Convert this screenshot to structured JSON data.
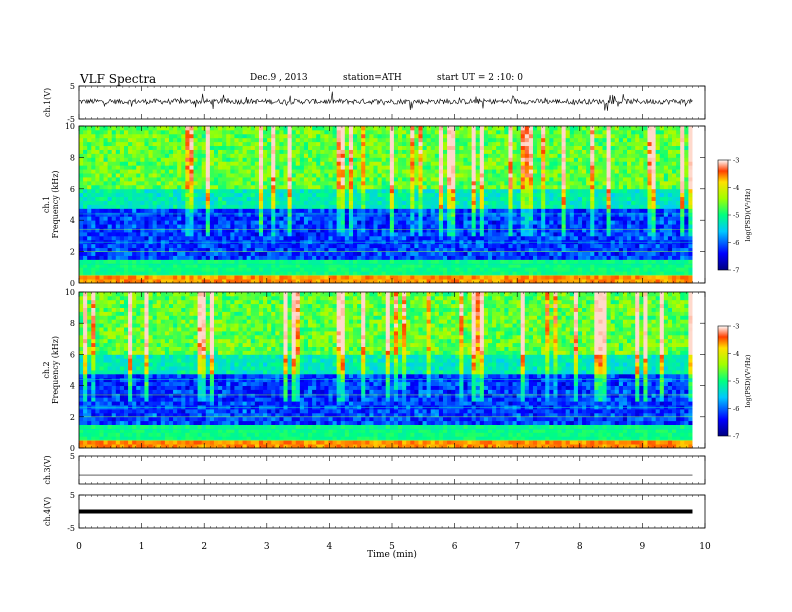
{
  "header": {
    "title": "VLF  Spectra",
    "date": "Dec.9  , 2013",
    "station": "station=ATH",
    "start": "start  UT  =   2 :10: 0"
  },
  "chart_data": [
    {
      "type": "line",
      "panel": "ch1-waveform",
      "ylabel": "ch.1(V)",
      "ylim": [
        -5,
        5
      ],
      "yticks": [
        "5",
        "-5"
      ],
      "x_range_min": [
        0,
        9.8
      ],
      "description_values": "continuous noisy waveform near 0 V with frequent spikes"
    },
    {
      "type": "heatmap",
      "panel": "ch1-spectrogram",
      "ylabel": "ch.1\nFrequency (kHz)",
      "ylabel_parts": [
        "ch.1",
        "Frequency (kHz)"
      ],
      "ylim": [
        0,
        10
      ],
      "yticks": [
        "0",
        "2",
        "4",
        "6",
        "8",
        "10"
      ],
      "x_range_min": [
        0,
        9.8
      ],
      "colorbar": {
        "label": "log(PSD)(V²/Hz)",
        "ticks": [
          "-3",
          "-4",
          "-5",
          "-6",
          "-7"
        ],
        "range": [
          -7,
          -3
        ]
      }
    },
    {
      "type": "heatmap",
      "panel": "ch2-spectrogram",
      "ylabel_parts": [
        "ch.2",
        "Frequency (kHz)"
      ],
      "ylim": [
        0,
        10
      ],
      "yticks": [
        "0",
        "2",
        "4",
        "6",
        "8",
        "10"
      ],
      "x_range_min": [
        0,
        9.8
      ],
      "colorbar": {
        "label": "log(PSD)(V²/Hz)",
        "ticks": [
          "-3",
          "-4",
          "-5",
          "-6",
          "-7"
        ],
        "range": [
          -7,
          -3
        ]
      }
    },
    {
      "type": "line",
      "panel": "ch3-waveform",
      "ylabel": "ch.3(V)",
      "ylim": [
        -5,
        5
      ],
      "yticks": [
        "5"
      ],
      "x_range_min": [
        0,
        9.8
      ]
    },
    {
      "type": "line",
      "panel": "ch4-waveform",
      "ylabel": "ch.4(V)",
      "ylim": [
        -5,
        5
      ],
      "yticks": [
        "5",
        "-5"
      ],
      "x_range_min": [
        0,
        9.8
      ]
    }
  ],
  "x_axis": {
    "label": "Time  (min)",
    "ticks": [
      "0",
      "1",
      "2",
      "3",
      "4",
      "5",
      "6",
      "7",
      "8",
      "9",
      "10"
    ],
    "range": [
      0,
      10
    ]
  }
}
